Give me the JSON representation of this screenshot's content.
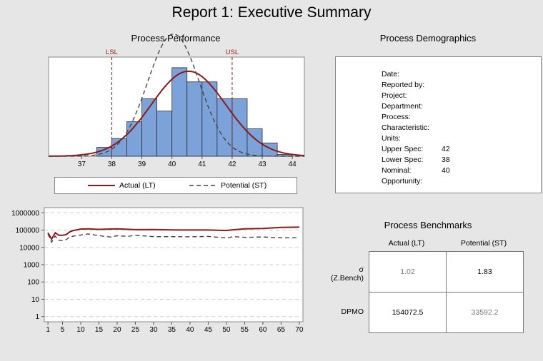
{
  "report_title": "Report 1: Executive Summary",
  "colors": {
    "actual": "#8b1a1a",
    "potential": "#444444",
    "bar_fill": "#7ba3d9",
    "bar_stroke": "#2a2a3a",
    "panel_bg": "#ffffff",
    "spec_line": "#8b1a1a"
  },
  "process_performance": {
    "title": "Process Performance",
    "lsl_label": "LSL",
    "usl_label": "USL"
  },
  "legend": {
    "actual": "Actual (LT)",
    "potential": "Potential (ST)"
  },
  "demographics": {
    "title": "Process Demographics",
    "rows": [
      {
        "label": "Date:",
        "value": ""
      },
      {
        "label": "Reported by:",
        "value": ""
      },
      {
        "label": "Project:",
        "value": ""
      },
      {
        "label": "Department:",
        "value": ""
      },
      {
        "label": "Process:",
        "value": ""
      },
      {
        "label": "Characteristic:",
        "value": ""
      },
      {
        "label": "Units:",
        "value": ""
      },
      {
        "label": "Upper Spec:",
        "value": "42"
      },
      {
        "label": "Lower Spec:",
        "value": "38"
      },
      {
        "label": "Nominal:",
        "value": "40"
      },
      {
        "label": "Opportunity:",
        "value": ""
      }
    ]
  },
  "benchmarks": {
    "title": "Process Benchmarks",
    "col_actual": "Actual (LT)",
    "col_potential": "Potential (ST)",
    "row_sigma_label_1": "σ",
    "row_sigma_label_2": "(Z.Bench)",
    "row_dpmo_label": "DPMO",
    "sigma_actual": "1.02",
    "sigma_potential": "1.83",
    "dpmo_actual": "154072.5",
    "dpmo_potential": "33592.2"
  },
  "chart_data": [
    {
      "type": "bar",
      "title": "Process Performance",
      "x_ticks": [
        "37",
        "38",
        "39",
        "40",
        "41",
        "42",
        "43",
        "44"
      ],
      "xlim": [
        35.9,
        44.4
      ],
      "lsl": 38,
      "usl": 42,
      "bins": [
        {
          "start": 37.5,
          "end": 38.0,
          "height": 0.1
        },
        {
          "start": 38.0,
          "end": 38.5,
          "height": 0.2
        },
        {
          "start": 38.5,
          "end": 39.0,
          "height": 0.39
        },
        {
          "start": 39.0,
          "end": 39.5,
          "height": 0.65
        },
        {
          "start": 39.5,
          "end": 40.0,
          "height": 0.51
        },
        {
          "start": 40.0,
          "end": 40.5,
          "height": 1.0
        },
        {
          "start": 40.5,
          "end": 41.0,
          "height": 0.84
        },
        {
          "start": 41.0,
          "end": 41.5,
          "height": 0.84
        },
        {
          "start": 41.5,
          "end": 42.0,
          "height": 0.65
        },
        {
          "start": 42.0,
          "end": 42.5,
          "height": 0.65
        },
        {
          "start": 42.5,
          "end": 43.0,
          "height": 0.31
        },
        {
          "start": 43.0,
          "end": 43.5,
          "height": 0.15
        },
        {
          "start": 43.5,
          "end": 44.0,
          "height": 0.02
        }
      ],
      "ylim": [
        0,
        1.12
      ],
      "curves": [
        {
          "name": "Actual (LT)",
          "mean": 40.55,
          "sd": 1.24,
          "peak": 0.96,
          "style": "solid"
        },
        {
          "name": "Potential (ST)",
          "mean": 40.05,
          "sd": 0.86,
          "peak": 1.38,
          "style": "dashed"
        }
      ]
    },
    {
      "type": "line",
      "y_scale": "log",
      "ylim": [
        0.5,
        2000000
      ],
      "y_ticks": [
        "1",
        "10",
        "100",
        "1000",
        "10000",
        "100000",
        "1000000"
      ],
      "x_ticks": [
        "1",
        "5",
        "10",
        "15",
        "20",
        "25",
        "30",
        "35",
        "40",
        "45",
        "50",
        "55",
        "60",
        "65",
        "70"
      ],
      "xlim": [
        0,
        71
      ],
      "series": [
        {
          "name": "Actual (LT)",
          "style": "solid",
          "x": [
            1,
            2,
            3,
            4,
            5,
            6,
            7,
            8,
            10,
            12,
            15,
            20,
            25,
            30,
            35,
            40,
            45,
            50,
            51,
            55,
            60,
            65,
            70
          ],
          "values": [
            70000,
            30000,
            70000,
            50000,
            50000,
            55000,
            80000,
            95000,
            115000,
            118000,
            110000,
            118000,
            106000,
            108000,
            102000,
            101000,
            101000,
            95000,
            100000,
            118000,
            125000,
            142000,
            148000
          ]
        },
        {
          "name": "Potential (ST)",
          "style": "dashed",
          "x": [
            1,
            2,
            3,
            4,
            5,
            6,
            7,
            8,
            10,
            12,
            15,
            18,
            20,
            23,
            25,
            30,
            35,
            40,
            45,
            50,
            52,
            55,
            60,
            65,
            70
          ],
          "values": [
            60000,
            20000,
            45000,
            25000,
            25000,
            28000,
            40000,
            45000,
            52000,
            60000,
            48000,
            40000,
            47000,
            44000,
            50000,
            42000,
            42000,
            41000,
            43000,
            35000,
            42000,
            38000,
            40000,
            36000,
            36000
          ]
        }
      ]
    }
  ]
}
